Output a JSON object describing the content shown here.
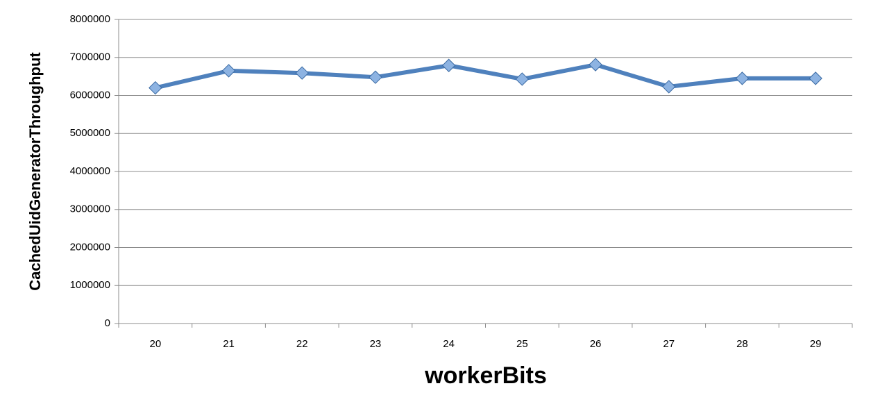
{
  "chart_data": {
    "type": "line",
    "x_label": "workerBits",
    "y_label": "CachedUidGeneratorThroughput",
    "categories": [
      "20",
      "21",
      "22",
      "23",
      "24",
      "25",
      "26",
      "27",
      "28",
      "29"
    ],
    "values": [
      6200000,
      6650000,
      6590000,
      6480000,
      6790000,
      6430000,
      6810000,
      6230000,
      6450000,
      6450000
    ],
    "color": "#4f81bd",
    "ylim": [
      0,
      8000000
    ],
    "yticks": [
      0,
      1000000,
      2000000,
      3000000,
      4000000,
      5000000,
      6000000,
      7000000,
      8000000
    ],
    "grid": true
  }
}
